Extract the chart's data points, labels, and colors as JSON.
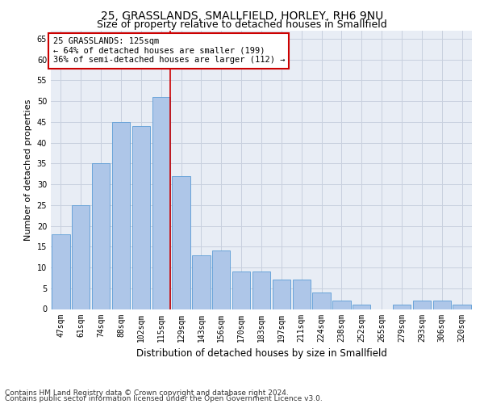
{
  "title1": "25, GRASSLANDS, SMALLFIELD, HORLEY, RH6 9NU",
  "title2": "Size of property relative to detached houses in Smallfield",
  "xlabel": "Distribution of detached houses by size in Smallfield",
  "ylabel": "Number of detached properties",
  "categories": [
    "47sqm",
    "61sqm",
    "74sqm",
    "88sqm",
    "102sqm",
    "115sqm",
    "129sqm",
    "143sqm",
    "156sqm",
    "170sqm",
    "183sqm",
    "197sqm",
    "211sqm",
    "224sqm",
    "238sqm",
    "252sqm",
    "265sqm",
    "279sqm",
    "293sqm",
    "306sqm",
    "320sqm"
  ],
  "values": [
    18,
    25,
    35,
    45,
    44,
    51,
    32,
    13,
    14,
    9,
    9,
    7,
    7,
    4,
    2,
    1,
    0,
    1,
    2,
    2,
    1
  ],
  "bar_color": "#aec6e8",
  "bar_edge_color": "#5a9bd5",
  "highlight_bar_index": 5,
  "annotation_line1": "25 GRASSLANDS: 125sqm",
  "annotation_line2": "← 64% of detached houses are smaller (199)",
  "annotation_line3": "36% of semi-detached houses are larger (112) →",
  "annotation_box_color": "#ffffff",
  "annotation_box_edge": "#cc0000",
  "annotation_text_color": "#000000",
  "vline_color": "#cc0000",
  "ylim": [
    0,
    67
  ],
  "yticks": [
    0,
    5,
    10,
    15,
    20,
    25,
    30,
    35,
    40,
    45,
    50,
    55,
    60,
    65
  ],
  "grid_color": "#c8d0de",
  "background_color": "#e8edf5",
  "footer1": "Contains HM Land Registry data © Crown copyright and database right 2024.",
  "footer2": "Contains public sector information licensed under the Open Government Licence v3.0.",
  "title1_fontsize": 10,
  "title2_fontsize": 9,
  "xlabel_fontsize": 8.5,
  "ylabel_fontsize": 8,
  "tick_fontsize": 7,
  "annotation_fontsize": 7.5,
  "footer_fontsize": 6.5
}
